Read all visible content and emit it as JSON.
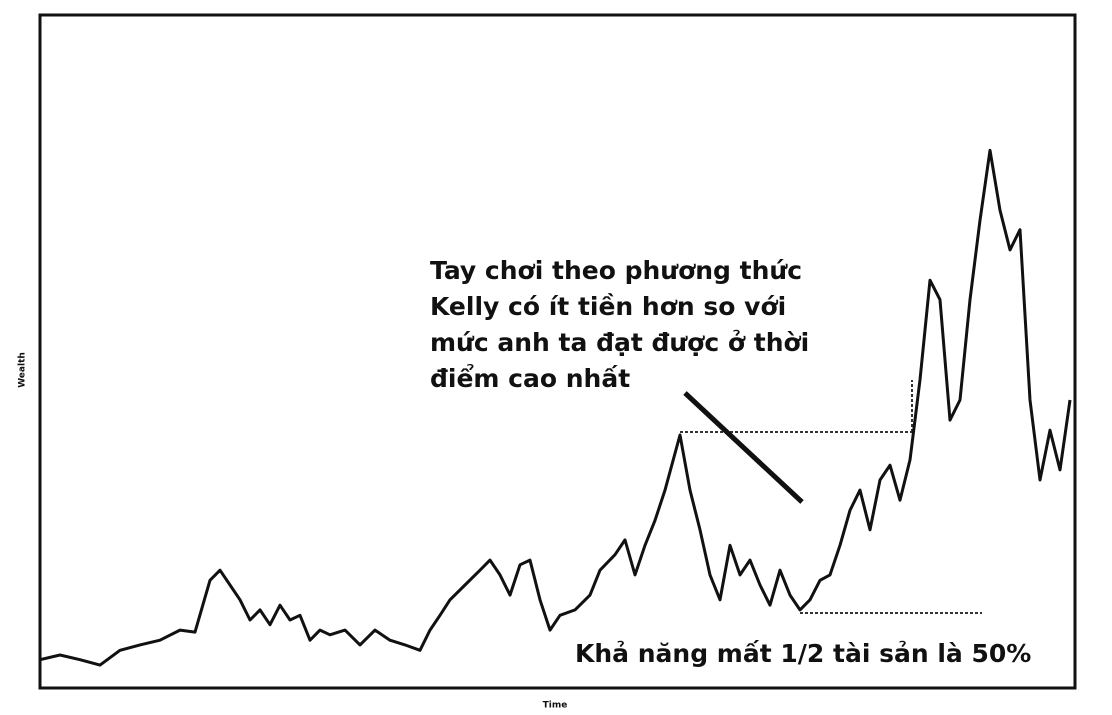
{
  "chart_data": {
    "type": "line",
    "x_label": "Time",
    "y_label": "Wealth",
    "x": [
      0,
      20,
      40,
      60,
      80,
      100,
      120,
      140,
      155,
      170,
      180,
      190,
      200,
      210,
      220,
      230,
      240,
      250,
      260,
      270,
      280,
      290,
      305,
      320,
      335,
      350,
      365,
      380,
      390,
      400,
      410,
      425,
      440,
      450,
      460,
      470,
      480,
      490,
      500,
      510,
      520,
      535,
      550,
      560,
      575,
      585,
      595,
      605,
      615,
      625,
      640,
      650,
      660,
      670,
      680,
      690,
      700,
      710,
      720,
      730,
      740,
      750,
      760,
      770,
      780,
      790,
      800,
      810,
      820,
      830,
      840,
      850,
      860,
      870,
      880,
      890,
      900,
      910,
      920,
      930,
      940,
      950,
      960,
      970,
      980,
      990,
      1000,
      1010,
      1020,
      1030
    ],
    "values": [
      4.2,
      4.9,
      4.2,
      3.4,
      5.6,
      6.4,
      7.1,
      8.6,
      8.3,
      16,
      17.5,
      15.3,
      13.1,
      10.1,
      11.6,
      9.4,
      12.3,
      10.1,
      10.8,
      7.1,
      8.6,
      7.9,
      8.6,
      6.4,
      8.6,
      7.1,
      6.4,
      5.6,
      8.6,
      10.8,
      13.1,
      15.3,
      17.5,
      19,
      16.8,
      13.8,
      18.3,
      19,
      13.1,
      8.6,
      10.8,
      11.6,
      13.8,
      17.5,
      19.8,
      22,
      16.8,
      21.2,
      24.9,
      29.4,
      37.6,
      29.4,
      23.5,
      16.8,
      13.1,
      21.2,
      16.8,
      19,
      15.3,
      12.3,
      17.5,
      13.8,
      11.6,
      13.1,
      16,
      16.8,
      21.2,
      26.4,
      29.4,
      23.5,
      30.9,
      33.1,
      27.9,
      33.9,
      45.8,
      60.6,
      57.7,
      39.8,
      42.8,
      57.7,
      69.5,
      79.9,
      71,
      65.1,
      68.1,
      42.8,
      30.9,
      38.3,
      32.4,
      42.8
    ],
    "color": "#111111",
    "xlim": [
      0,
      1035
    ],
    "ylim": [
      0,
      100
    ],
    "annotations": [
      {
        "lines": [
          "Tay chơi theo phương thức",
          "Kelly có ít tiền hơn so với",
          "mức anh ta đạt được ở thời",
          "điểm cao nhất"
        ]
      },
      {
        "lines": [
          "Khả năng mất 1/2 tài sản là 50%"
        ]
      }
    ]
  }
}
